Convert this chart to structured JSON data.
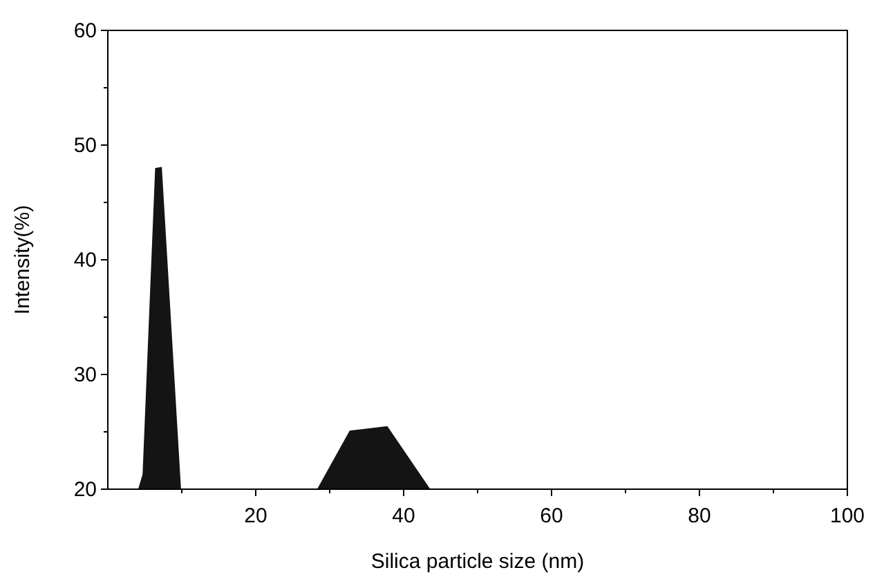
{
  "chart_data": {
    "type": "area",
    "xlabel": "Silica particle size (nm)",
    "ylabel": "Intensity(%)",
    "x": [
      4.1,
      4.7,
      6.4,
      7.3,
      9.9,
      28.3,
      32.7,
      37.8,
      43.6
    ],
    "series": [
      {
        "color": "#141414",
        "values": [
          20,
          21.3,
          48.0,
          48.1,
          20,
          20,
          25.1,
          25.5,
          20
        ]
      }
    ],
    "xlim": [
      0,
      100
    ],
    "ylim": [
      20,
      60
    ],
    "xticks": [
      {
        "value": 10,
        "label": null
      },
      20,
      {
        "value": 30,
        "label": null
      },
      40,
      {
        "value": 50,
        "label": null
      },
      60,
      {
        "value": 70,
        "label": null
      },
      80,
      {
        "value": 90,
        "label": null
      },
      100
    ],
    "yticks": [
      20,
      {
        "value": 25,
        "label": null
      },
      30,
      {
        "value": 35,
        "label": null
      },
      40,
      {
        "value": 45,
        "label": null
      },
      50,
      {
        "value": 55,
        "label": null
      },
      60
    ],
    "grid": false
  }
}
